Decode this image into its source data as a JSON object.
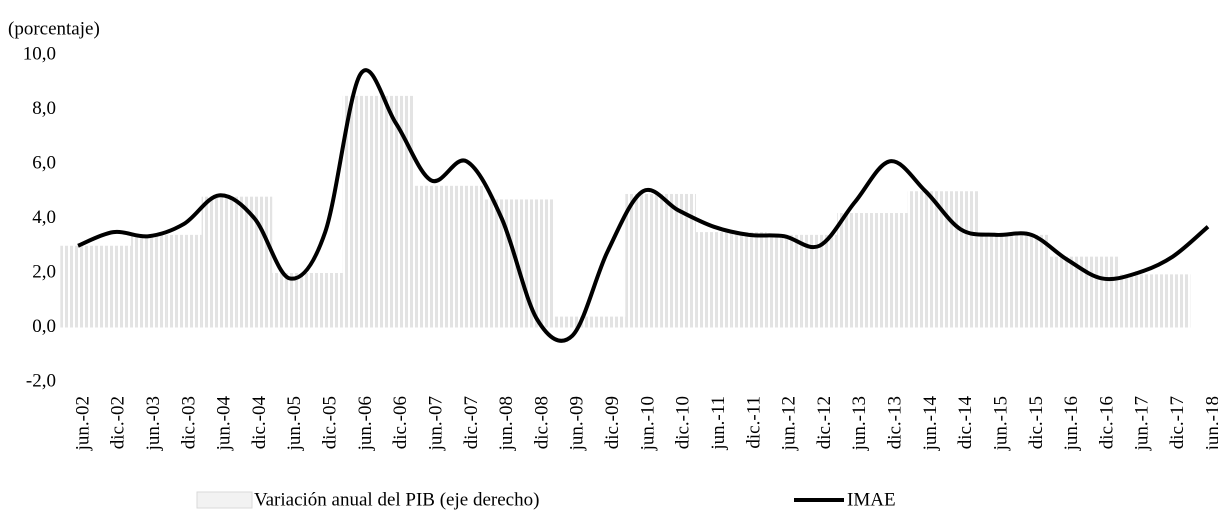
{
  "chart_data": {
    "type": "bar-line",
    "y_label": "(porcentaje)",
    "categories": [
      "jun.-02",
      "dic.-02",
      "jun.-03",
      "dic.-03",
      "jun.-04",
      "dic.-04",
      "jun.-05",
      "dic.-05",
      "jun.-06",
      "dic.-06",
      "jun.-07",
      "dic.-07",
      "jun.-08",
      "dic.-08",
      "jun.-09",
      "dic.-09",
      "jun.-10",
      "dic.-10",
      "jun.-11",
      "dic.-11",
      "jun.-12",
      "dic.-12",
      "jun.-13",
      "dic.-13",
      "jun.-14",
      "dic.-14",
      "jun.-15",
      "dic.-15",
      "jun.-16",
      "dic.-16",
      "jun.-17",
      "dic.-17",
      "jun.-18"
    ],
    "series": [
      {
        "name": "Variación anual del PIB (eje derecho)",
        "type": "bar",
        "color": "#d9d9d9",
        "values": [
          3.0,
          3.0,
          3.4,
          3.4,
          4.8,
          4.8,
          2.0,
          2.0,
          8.5,
          8.5,
          5.2,
          5.2,
          4.7,
          4.7,
          0.4,
          0.4,
          4.9,
          4.9,
          3.5,
          3.5,
          3.4,
          3.4,
          4.2,
          4.2,
          5.0,
          5.0,
          3.4,
          3.4,
          2.6,
          2.6,
          1.95,
          1.95,
          null
        ]
      },
      {
        "name": "IMAE",
        "type": "line",
        "color": "#000000",
        "values": [
          3.0,
          3.5,
          3.35,
          3.8,
          4.85,
          4.0,
          1.8,
          3.5,
          9.3,
          7.5,
          5.4,
          6.1,
          4.0,
          0.3,
          -0.3,
          2.8,
          5.0,
          4.3,
          3.7,
          3.4,
          3.35,
          3.0,
          4.6,
          6.1,
          5.0,
          3.6,
          3.4,
          3.4,
          2.5,
          1.8,
          2.0,
          2.6,
          3.7
        ]
      }
    ],
    "ylim": [
      -2,
      10
    ],
    "yticks": [
      {
        "value": -2,
        "label": "-2,0"
      },
      {
        "value": 0,
        "label": "0,0"
      },
      {
        "value": 2,
        "label": "2,0"
      },
      {
        "value": 4,
        "label": "4,0"
      },
      {
        "value": 6,
        "label": "6,0"
      },
      {
        "value": 8,
        "label": "8,0"
      },
      {
        "value": 10,
        "label": "10,0"
      }
    ],
    "grid": false
  }
}
